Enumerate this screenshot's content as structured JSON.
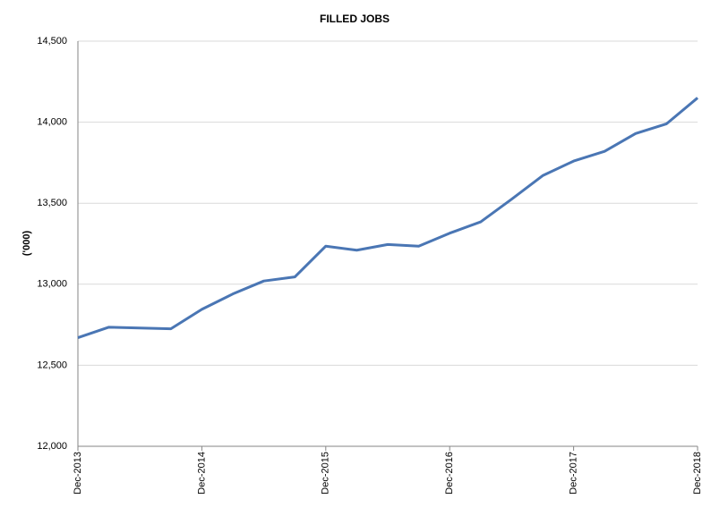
{
  "chart_data": {
    "type": "line",
    "title": "FILLED JOBS",
    "y_label": "('000)",
    "categories": [
      "Dec-2013",
      null,
      null,
      null,
      "Dec-2014",
      null,
      null,
      null,
      "Dec-2015",
      null,
      null,
      null,
      "Dec-2016",
      null,
      null,
      null,
      "Dec-2017",
      null,
      null,
      null,
      "Dec-2018"
    ],
    "values": [
      12670,
      12735,
      12730,
      12725,
      12845,
      12940,
      13020,
      13045,
      13235,
      13210,
      13245,
      13235,
      13315,
      13385,
      13525,
      13670,
      13760,
      13820,
      13930,
      13990,
      14150
    ],
    "color": "#4a76b4",
    "ylim": [
      12000,
      14500
    ],
    "yticks": [
      {
        "value": 12000,
        "label": "12,000"
      },
      {
        "value": 12500,
        "label": "12,500"
      },
      {
        "value": 13000,
        "label": "13,000"
      },
      {
        "value": 13500,
        "label": "13,500"
      },
      {
        "value": 14000,
        "label": "14,000"
      },
      {
        "value": 14500,
        "label": "14,500"
      }
    ],
    "grid": true
  }
}
